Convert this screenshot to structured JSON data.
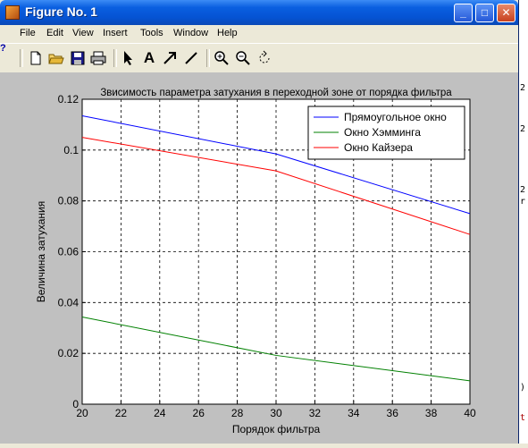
{
  "window": {
    "title": "Figure No. 1",
    "controls": {
      "minimize": "_",
      "maximize": "□",
      "close": "✕"
    }
  },
  "menu": [
    "File",
    "Edit",
    "View",
    "Insert",
    "Tools",
    "Window",
    "Help"
  ],
  "toolbar": {
    "tools": [
      "new-file-icon",
      "open-folder-icon",
      "save-icon",
      "print-icon",
      "arrow-pointer-icon",
      "text-insert-icon",
      "arrow-insert-icon",
      "line-insert-icon",
      "zoom-in-icon",
      "zoom-out-icon",
      "rotate-icon"
    ],
    "text_tool_label": "A"
  },
  "side_text": {
    "right": [
      "2",
      "2",
      "2",
      "r",
      ")",
      "t"
    ],
    "left": "?"
  },
  "chart_data": {
    "type": "line",
    "title": "Звисимость параметра затухания в переходной зоне от порядка фильтра",
    "xlabel": "Порядок фильтра",
    "ylabel": "Величина затухания",
    "xlim": [
      20,
      40
    ],
    "ylim": [
      0,
      0.12
    ],
    "xticks": [
      20,
      22,
      24,
      26,
      28,
      30,
      32,
      34,
      36,
      38,
      40
    ],
    "yticks": [
      "0",
      "0.02",
      "0.04",
      "0.06",
      "0.08",
      "0.1",
      "0.12"
    ],
    "ytick_values": [
      0,
      0.02,
      0.04,
      0.06,
      0.08,
      0.1,
      0.12
    ],
    "grid": true,
    "legend_position": "top-right",
    "series": [
      {
        "name": "Прямоугольное окно",
        "color": "#0000ff",
        "x": [
          20,
          30,
          40
        ],
        "y": [
          0.1135,
          0.0985,
          0.075
        ]
      },
      {
        "name": "Окно Хэмминга",
        "color": "#008000",
        "x": [
          20,
          30,
          40
        ],
        "y": [
          0.0343,
          0.0192,
          0.0092
        ]
      },
      {
        "name": "Окно Кайзера",
        "color": "#ff0000",
        "x": [
          20,
          30,
          40
        ],
        "y": [
          0.105,
          0.0918,
          0.0668
        ]
      }
    ]
  }
}
